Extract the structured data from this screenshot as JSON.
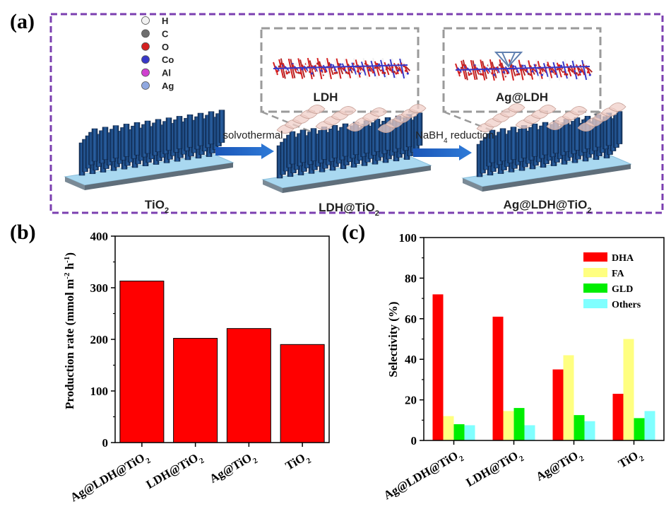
{
  "panels": {
    "a": "(a)",
    "b": "(b)",
    "c": "(c)"
  },
  "scheme": {
    "legend": [
      {
        "label": "H",
        "color": "#f2f2f2"
      },
      {
        "label": "C",
        "color": "#6e6e6e"
      },
      {
        "label": "O",
        "color": "#d42020"
      },
      {
        "label": "Co",
        "color": "#3838c8"
      },
      {
        "label": "Al",
        "color": "#d040d0"
      },
      {
        "label": "Ag",
        "color": "#90a8e0"
      }
    ],
    "inset_ldh": "LDH",
    "inset_agldh": "Ag@LDH",
    "step1": "solvothermal",
    "step2_pre": "NaBH",
    "step2_sub": "4",
    "step2_post": " reduction",
    "sub1_main": "TiO",
    "sub1_sub": "2",
    "sub2_main": "LDH@TiO",
    "sub2_sub": "2",
    "sub3_main": "Ag@LDH@TiO",
    "sub3_sub": "2"
  },
  "chart_data": [
    {
      "type": "bar",
      "categories": [
        "Ag@LDH@TiO2",
        "LDH@TiO2",
        "Ag@TiO2",
        "TiO2"
      ],
      "category_labels": [
        {
          "main": "Ag@LDH@TiO",
          "sub": "2"
        },
        {
          "main": "LDH@TiO",
          "sub": "2"
        },
        {
          "main": "Ag@TiO",
          "sub": "2"
        },
        {
          "main": "TiO",
          "sub": "2"
        }
      ],
      "values": [
        313,
        202,
        221,
        190
      ],
      "ylim": [
        0,
        400
      ],
      "yticks": [
        0,
        100,
        200,
        300,
        400
      ],
      "ylabel_pre": "Production rate (mmol m",
      "ylabel_sup1": "-2",
      "ylabel_mid": " h",
      "ylabel_sup2": "-1",
      "ylabel_post": ")",
      "color": "#ff0000"
    },
    {
      "type": "bar",
      "categories": [
        "Ag@LDH@TiO2",
        "LDH@TiO2",
        "Ag@TiO2",
        "TiO2"
      ],
      "category_labels": [
        {
          "main": "Ag@LDH@TiO",
          "sub": "2"
        },
        {
          "main": "LDH@TiO",
          "sub": "2"
        },
        {
          "main": "Ag@TiO",
          "sub": "2"
        },
        {
          "main": "TiO",
          "sub": "2"
        }
      ],
      "series": [
        {
          "name": "DHA",
          "color": "#ff0000",
          "values": [
            72,
            61,
            35,
            23
          ]
        },
        {
          "name": "FA",
          "color": "#ffff80",
          "values": [
            12,
            14.5,
            42,
            50
          ]
        },
        {
          "name": "GLD",
          "color": "#00ee00",
          "values": [
            8,
            16,
            12.5,
            11
          ]
        },
        {
          "name": "Others",
          "color": "#80ffff",
          "values": [
            7.5,
            7.5,
            9.5,
            14.5
          ]
        }
      ],
      "ylim": [
        0,
        100
      ],
      "yticks": [
        0,
        20,
        40,
        60,
        80,
        100
      ],
      "ylabel": "Selectivity (%)",
      "legend_position": "top-right"
    }
  ]
}
